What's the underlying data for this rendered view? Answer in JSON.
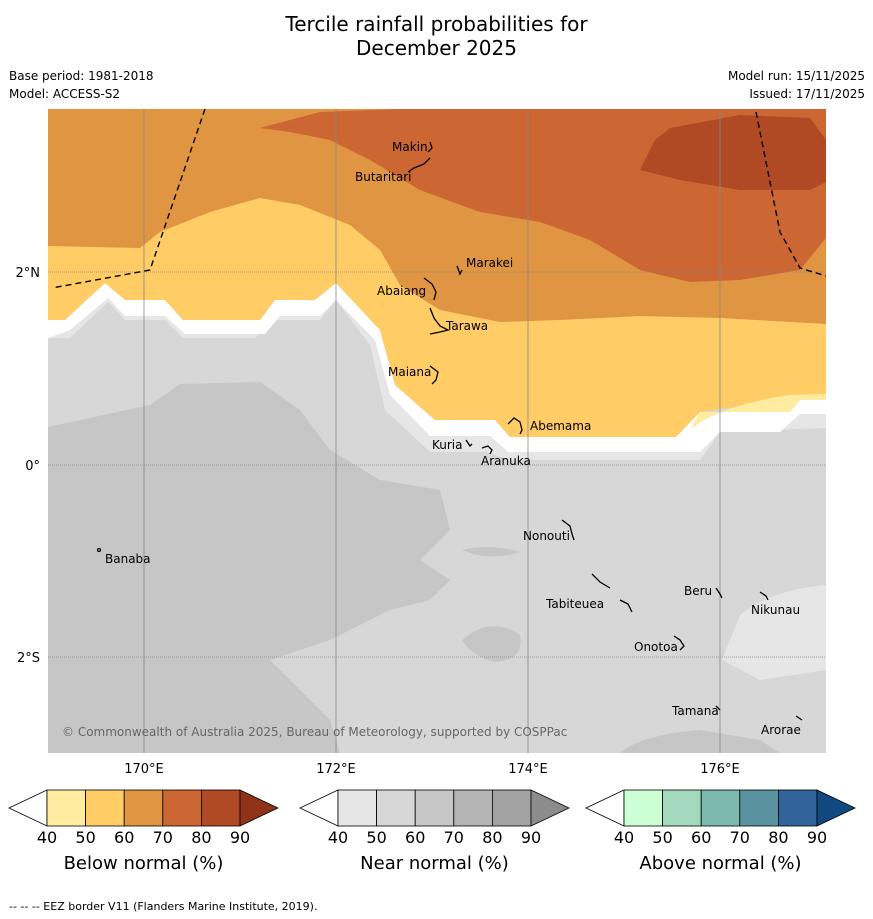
{
  "title_line1": "Tercile rainfall probabilities for",
  "title_line2": "December 2025",
  "base_period": "Base period: 1981-2018",
  "model": "Model: ACCESS-S2",
  "model_run": "Model run: 15/11/2025",
  "issued": "Issued: 17/11/2025",
  "copyright": "© Commonwealth of Australia 2025, Bureau of Meteorology, supported by COSPPac",
  "footer": "-- -- -- EEZ border V11 (Flanders Marine Institute, 2019).",
  "axes": {
    "lat_labels": [
      "2°N",
      "0°",
      "2°S"
    ],
    "lon_labels": [
      "170°E",
      "172°E",
      "174°E",
      "176°E"
    ]
  },
  "places": [
    "Makin",
    "Butaritari",
    "Marakei",
    "Abaiang",
    "Tarawa",
    "Maiana",
    "Abemama",
    "Kuria",
    "Aranuka",
    "Nonouti",
    "Banaba",
    "Tabiteuea",
    "Beru",
    "Nikunau",
    "Onotoa",
    "Tamana",
    "Arorae"
  ],
  "colorbars": [
    {
      "title": "Below normal (%)",
      "ticks": [
        "40",
        "50",
        "60",
        "70",
        "80",
        "90"
      ],
      "colors": [
        "#ffffff",
        "#ffeca0",
        "#ffcc66",
        "#e09542",
        "#cc6633",
        "#b04a24",
        "#8e3218"
      ]
    },
    {
      "title": "Near normal (%)",
      "ticks": [
        "40",
        "50",
        "60",
        "70",
        "80",
        "90"
      ],
      "colors": [
        "#ffffff",
        "#e6e6e6",
        "#d7d7d7",
        "#c6c6c6",
        "#b4b4b4",
        "#a2a2a2",
        "#8c8c8c"
      ]
    },
    {
      "title": "Above normal (%)",
      "ticks": [
        "40",
        "50",
        "60",
        "70",
        "80",
        "90"
      ],
      "colors": [
        "#ffffff",
        "#ccffd4",
        "#a3d9bd",
        "#7bb8ad",
        "#5a92a0",
        "#32649a",
        "#104880"
      ]
    }
  ],
  "colors": {
    "below_60": "#ffcc66",
    "below_70": "#e09542",
    "below_80": "#cc6633",
    "below_90": "#b04a24",
    "below_50": "#ffeca0",
    "near_50": "#e6e6e6",
    "near_60": "#d7d7d7",
    "near_70": "#c6c6c6",
    "buffer": "#ffffff"
  }
}
